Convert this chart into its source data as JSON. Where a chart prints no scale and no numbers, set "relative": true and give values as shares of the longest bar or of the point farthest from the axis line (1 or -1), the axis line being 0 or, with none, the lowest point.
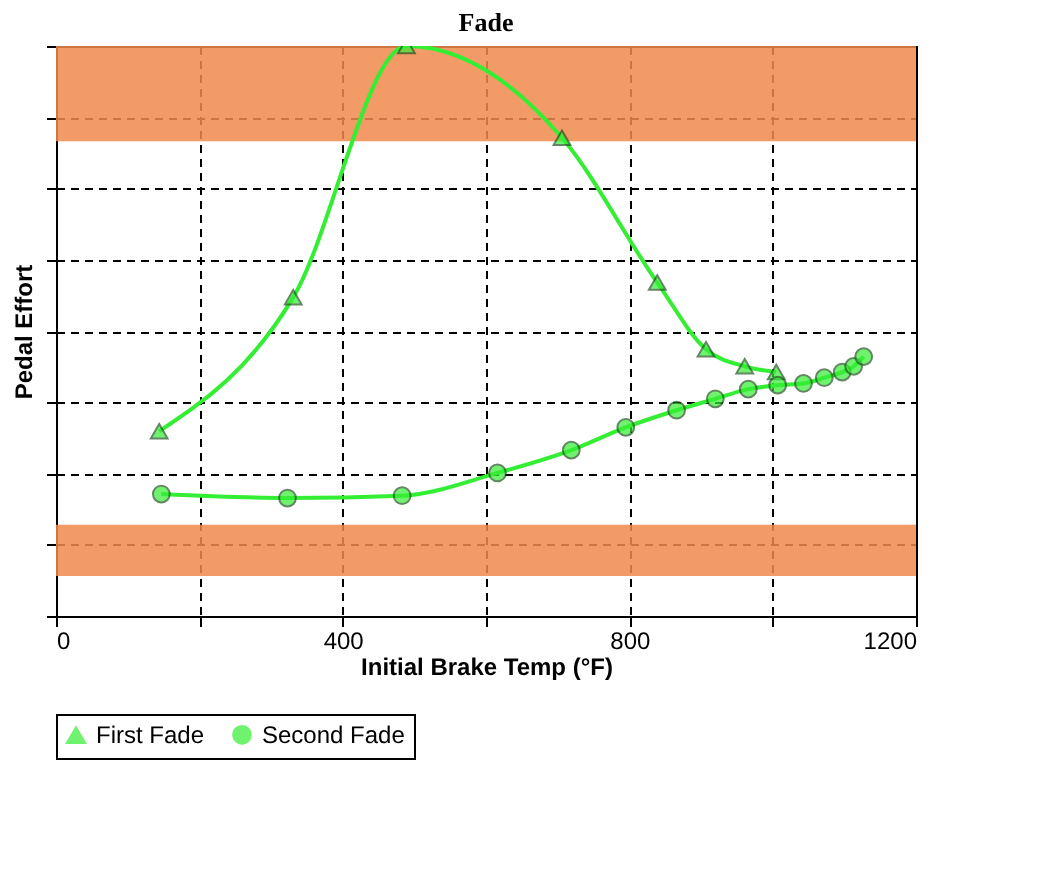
{
  "chart_data": {
    "type": "line",
    "title": "Fade",
    "xlabel": "Initial Brake Temp (°F)",
    "ylabel": "Pedal Effort",
    "relative": true,
    "xlim": [
      0,
      1200
    ],
    "xticks": [
      0,
      {
        "value": 200,
        "label": null
      },
      400,
      {
        "value": 600,
        "label": null
      },
      800,
      {
        "value": 1000,
        "label": null
      },
      1200
    ],
    "grid": true,
    "legend": "bottom",
    "line_style": "solid",
    "bands": [
      {
        "axis": "y",
        "from": 0.833,
        "to": 1.0,
        "color": "#f08a4b"
      },
      {
        "axis": "y",
        "from": 0.07,
        "to": 0.16,
        "color": "#f08a4b"
      }
    ],
    "series": [
      {
        "name": "First Fade",
        "color": "#33ee33",
        "marker": "triangle",
        "x": [
          144,
          331,
          489,
          706,
          839,
          907,
          961,
          1005
        ],
        "values": [
          0.324,
          0.559,
          1.0,
          0.839,
          0.585,
          0.468,
          0.438,
          0.428
        ]
      },
      {
        "name": "Second Fade",
        "color": "#33ee33",
        "marker": "circle",
        "x": [
          147,
          323,
          483,
          616,
          719,
          795,
          866,
          920,
          966,
          1007,
          1043,
          1072,
          1097,
          1113,
          1127
        ],
        "values": [
          0.214,
          0.207,
          0.211,
          0.251,
          0.291,
          0.331,
          0.361,
          0.381,
          0.398,
          0.405,
          0.408,
          0.418,
          0.428,
          0.438,
          0.455
        ]
      }
    ]
  }
}
